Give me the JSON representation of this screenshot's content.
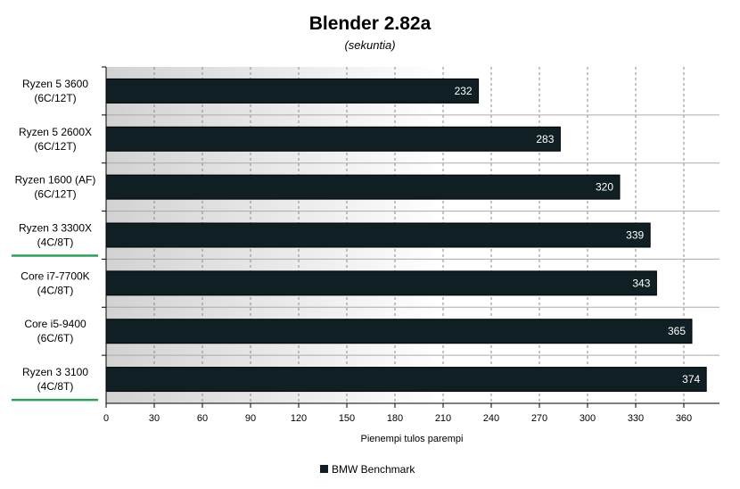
{
  "chart_data": {
    "type": "bar",
    "orientation": "horizontal",
    "title": "Blender 2.82a",
    "subtitle": "(sekuntia)",
    "xlabel": "Pienempi tulos parempi",
    "ylabel": "",
    "xlim": [
      0,
      375
    ],
    "ticks": [
      0,
      30,
      60,
      90,
      120,
      150,
      180,
      210,
      240,
      270,
      300,
      330,
      360
    ],
    "categories": [
      [
        "Ryzen 5 3600",
        "(6C/12T)"
      ],
      [
        "Ryzen 5 2600X",
        "(6C/12T)"
      ],
      [
        "Ryzen 1600 (AF)",
        "(6C/12T)"
      ],
      [
        "Ryzen 3 3300X",
        "(4C/8T)"
      ],
      [
        "Core i7-7700K",
        "(4C/8T)"
      ],
      [
        "Core i5-9400",
        "(6C/6T)"
      ],
      [
        "Ryzen 3 3100",
        "(4C/8T)"
      ]
    ],
    "highlighted": [
      false,
      false,
      false,
      true,
      false,
      false,
      true
    ],
    "series": [
      {
        "name": "BMW Benchmark",
        "values": [
          232,
          283,
          320,
          339,
          343,
          365,
          374
        ],
        "color": "#0f1f24"
      }
    ],
    "legend_position": "bottom-center",
    "grid": true,
    "highlight_color": "#2e9e5b"
  }
}
